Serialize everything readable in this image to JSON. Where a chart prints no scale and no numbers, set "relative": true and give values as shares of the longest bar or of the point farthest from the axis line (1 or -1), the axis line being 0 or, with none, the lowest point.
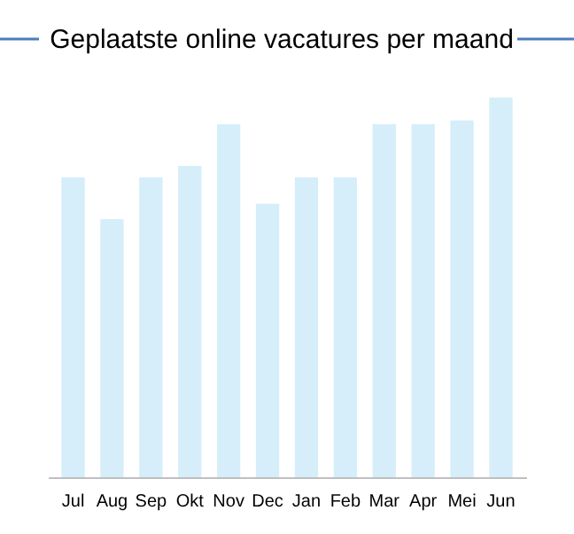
{
  "chart_data": {
    "type": "bar",
    "title": "Geplaatste online vacatures per maand",
    "relative": true,
    "categories": [
      "Jul",
      "Aug",
      "Sep",
      "Okt",
      "Nov",
      "Dec",
      "Jan",
      "Feb",
      "Mar",
      "Apr",
      "Mei",
      "Jun"
    ],
    "values": [
      0.79,
      0.68,
      0.79,
      0.82,
      0.93,
      0.72,
      0.79,
      0.79,
      0.93,
      0.93,
      0.94,
      1
    ],
    "color": "#d5eefa"
  }
}
